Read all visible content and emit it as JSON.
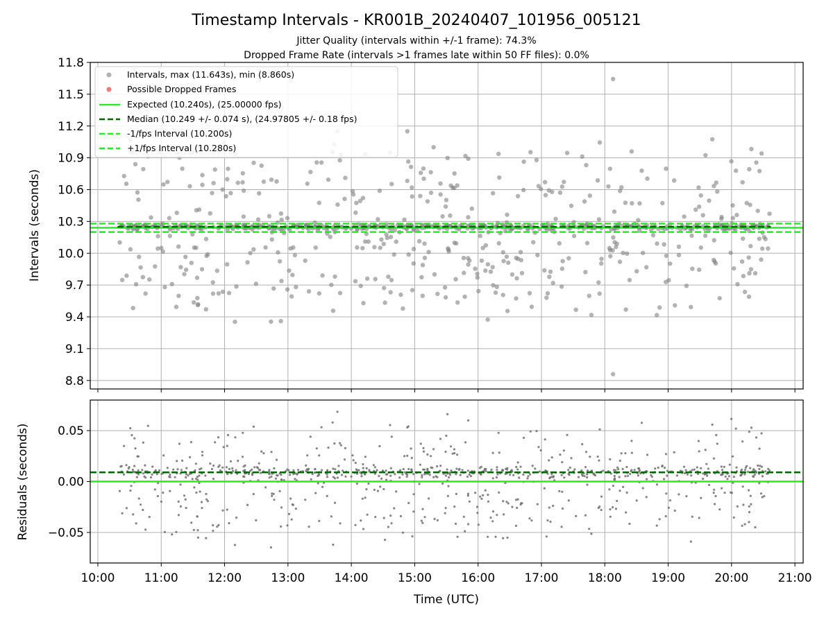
{
  "chart_data": {
    "type": "scatter",
    "title": "Timestamp Intervals - KR001B_20240407_101956_005121",
    "subtitle_lines": [
      "Jitter Quality (intervals within +/-1 frame): 74.3%",
      "Dropped Frame Rate (intervals >1 frames late within 50 FF files): 0.0%"
    ],
    "xlabel": "Time (UTC)",
    "x_ticks": [
      "10:00",
      "11:00",
      "12:00",
      "13:00",
      "14:00",
      "15:00",
      "16:00",
      "17:00",
      "18:00",
      "19:00",
      "20:00",
      "21:00"
    ],
    "xlim_hours": [
      9.88,
      21.13
    ],
    "data_x_range_hours": [
      10.33,
      20.6
    ],
    "grid": true,
    "panels": [
      {
        "name": "intervals",
        "ylabel": "Intervals (seconds)",
        "ylim": [
          8.72,
          11.8
        ],
        "y_ticks": [
          "8.8",
          "9.1",
          "9.4",
          "9.7",
          "10.0",
          "10.3",
          "10.6",
          "10.9",
          "11.2",
          "11.5",
          "11.8"
        ],
        "legend_position": "upper-left",
        "series": [
          {
            "name": "Intervals, max (11.643s), min (8.860s)",
            "kind": "scatter",
            "color": "#808080",
            "max": 11.643,
            "min": 8.86,
            "median": 10.249,
            "std": 0.074,
            "approx_points": 900
          },
          {
            "name": "Possible Dropped Frames",
            "kind": "scatter",
            "color": "#ff5555",
            "count": 0
          },
          {
            "name": "Expected (10.240s), (25.00000 fps)",
            "kind": "hline",
            "value": 10.24,
            "color": "#22ee22",
            "style": "solid"
          },
          {
            "name": "Median (10.249 +/- 0.074 s), (24.97805 +/- 0.18 fps)",
            "kind": "hline",
            "value": 10.249,
            "color": "#006400",
            "style": "dashed"
          },
          {
            "name": "-1/fps Interval (10.200s)",
            "kind": "hline",
            "value": 10.2,
            "color": "#22ee22",
            "style": "dashed"
          },
          {
            "name": "+1/fps Interval (10.280s)",
            "kind": "hline",
            "value": 10.28,
            "color": "#22ee22",
            "style": "dashed"
          }
        ]
      },
      {
        "name": "residuals",
        "ylabel": "Residuals (seconds)",
        "ylim": [
          -0.08,
          0.08
        ],
        "y_ticks": [
          "−0.05",
          "0.00",
          "0.05"
        ],
        "series": [
          {
            "kind": "scatter",
            "color": "#808080",
            "approx_points": 900
          },
          {
            "kind": "hline",
            "value": 0.0,
            "color": "#22ee22",
            "style": "solid"
          },
          {
            "kind": "hline",
            "value": 0.009,
            "color": "#006400",
            "style": "dashed"
          }
        ]
      }
    ]
  }
}
